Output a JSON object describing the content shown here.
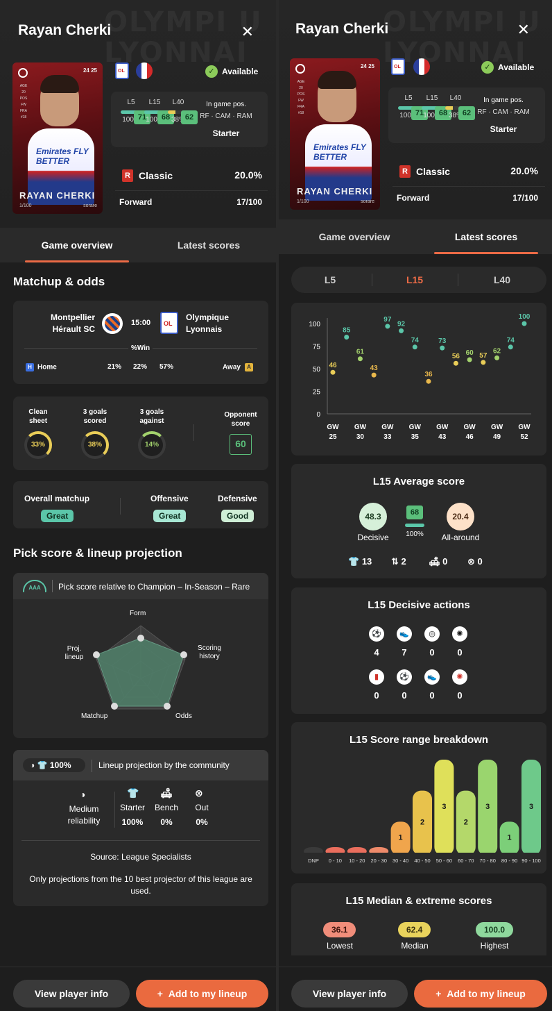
{
  "player": {
    "name": "Rayan Cherki",
    "availability": "Available",
    "card_name": "RAYAN CHERKI",
    "card_serial": "1/100",
    "card_brand": "sorare",
    "season": "24 25",
    "card_side": "AGE 20 POS FW FRA #18",
    "club_short": "OL",
    "shirt_text": "Emirates FLY BETTER"
  },
  "stats": {
    "l5": {
      "label": "L5",
      "value": "71",
      "pct": "100%",
      "fill": 1.0
    },
    "l15": {
      "label": "L15",
      "value": "68",
      "pct": "100%",
      "fill": 1.0
    },
    "l40": {
      "label": "L40",
      "value": "62",
      "pct": "38%",
      "fill": 0.38
    },
    "ingame_label": "In game pos.",
    "ingame_pos": "RF · CAM · RAM",
    "status": "Starter"
  },
  "rarity": {
    "badge": "R",
    "label": "Classic",
    "pct": "20.0%"
  },
  "position": {
    "label": "Forward",
    "rank": "17/100"
  },
  "tabs": {
    "overview": "Game overview",
    "latest": "Latest scores"
  },
  "matchup": {
    "title": "Matchup & odds",
    "home_team": "Montpellier Hérault SC",
    "away_team": "Olympique Lyonnais",
    "time": "15:00",
    "win_label": "%Win",
    "home_label": "Home",
    "away_label": "Away",
    "home_tag": "H",
    "away_tag": "A",
    "odds": [
      "21%",
      "22%",
      "57%"
    ]
  },
  "goals": {
    "clean_sheet": {
      "label": "Clean sheet",
      "value": "33%"
    },
    "three_scored": {
      "label": "3 goals scored",
      "value": "38%"
    },
    "three_against": {
      "label": "3 goals against",
      "value": "14%"
    },
    "opponent": {
      "label": "Opponent score",
      "value": "60"
    }
  },
  "overall": {
    "label": "Overall matchup",
    "value": "Great",
    "offensive_label": "Offensive",
    "offensive": "Great",
    "defensive_label": "Defensive",
    "defensive": "Good"
  },
  "pick": {
    "title": "Pick score & lineup projection",
    "badge": "AAA",
    "header": "Pick score relative to Champion – In-Season – Rare",
    "axes": [
      "Form",
      "Scoring history",
      "Odds",
      "Matchup",
      "Proj. lineup"
    ]
  },
  "lineup": {
    "moon": "◑",
    "pct": "100%",
    "header": "Lineup projection by the community",
    "reliability": "Medium reliability",
    "starter_label": "Starter",
    "starter": "100%",
    "bench_label": "Bench",
    "bench": "0%",
    "out_label": "Out",
    "out": "0%",
    "source": "Source: League Specialists",
    "note": "Only projections from the 10 best projector of this league are used."
  },
  "buttons": {
    "info": "View player info",
    "add": "Add to my lineup",
    "add_icon": "+"
  },
  "segments": [
    "L5",
    "L15",
    "L40"
  ],
  "chart_data": [
    {
      "type": "scatter",
      "title": "",
      "x": [
        "GW 25",
        "GW 26",
        "GW 30",
        "GW 31",
        "GW 33",
        "GW 34",
        "GW 35",
        "GW 36",
        "GW 43",
        "GW 44",
        "GW 46",
        "GW 47",
        "GW 49",
        "GW 50",
        "GW 52"
      ],
      "x_ticks": [
        "GW 25",
        "GW 30",
        "GW 33",
        "GW 35",
        "GW 43",
        "GW 46",
        "GW 49",
        "GW 52"
      ],
      "values": [
        46,
        85,
        61,
        43,
        97,
        92,
        74,
        36,
        73,
        56,
        60,
        57,
        62,
        74,
        100
      ],
      "ylim": [
        0,
        100
      ],
      "yticks": [
        0,
        25,
        50,
        75,
        100
      ]
    },
    {
      "type": "bar",
      "title": "L15 Score range breakdown",
      "categories": [
        "DNP",
        "0 - 10",
        "10 - 20",
        "20 - 30",
        "30 - 40",
        "40 - 50",
        "50 - 60",
        "60 - 70",
        "70 - 80",
        "80 - 90",
        "90 - 100"
      ],
      "values": [
        0,
        0,
        0,
        0,
        1,
        2,
        3,
        2,
        3,
        1,
        3
      ]
    }
  ],
  "average": {
    "title": "L15 Average score",
    "decisive": "48.3",
    "decisive_label": "Decisive",
    "mid": "68",
    "mid_pct": "100%",
    "allaround": "20.4",
    "allaround_label": "All-around",
    "counts": [
      "13",
      "2",
      "0",
      "0"
    ]
  },
  "decisive": {
    "title": "L15 Decisive actions",
    "row1": [
      "4",
      "7",
      "0",
      "0"
    ],
    "row2": [
      "0",
      "0",
      "0",
      "0"
    ]
  },
  "extremes": {
    "title": "L15 Median & extreme scores",
    "lowest": "36.1",
    "lowest_label": "Lowest",
    "median": "62.4",
    "median_label": "Median",
    "highest": "100.0",
    "highest_label": "Highest"
  },
  "colors": {
    "accent": "#ec6b46",
    "green": "#5bbf7b",
    "yellow": "#e9cd58"
  }
}
